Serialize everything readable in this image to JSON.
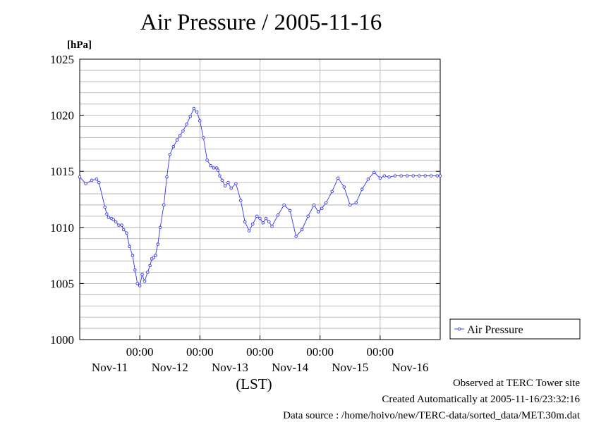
{
  "title": "Air Pressure / 2005-11-16",
  "footer": {
    "line1": "Observed at TERC Tower site",
    "line2": "Created Automatically at 2005-11-16/23:32:16",
    "line3": "Data source : /home/hoivo/new/TERC-data/sorted_data/MET.30m.dat"
  },
  "colors": {
    "series": "#3333ee",
    "grid": "#aaaaaa",
    "axis": "#000000"
  },
  "chart_data": {
    "type": "line",
    "title": "Air Pressure / 2005-11-16",
    "ylabel": "[hPa]",
    "xlabel": "(LST)",
    "ylim": [
      1000,
      1025
    ],
    "yticks": [
      1000,
      1005,
      1010,
      1015,
      1020,
      1025
    ],
    "xlim": [
      -1,
      5
    ],
    "xticks": [
      {
        "x": 0,
        "time": "00:00",
        "date": "Nov-12"
      },
      {
        "x": 1,
        "time": "00:00",
        "date": "Nov-13"
      },
      {
        "x": 2,
        "time": "00:00",
        "date": "Nov-14"
      },
      {
        "x": 3,
        "time": "00:00",
        "date": "Nov-15"
      },
      {
        "x": 4,
        "time": "00:00",
        "date": "Nov-16"
      }
    ],
    "date_labels": [
      {
        "x": -0.5,
        "label": "Nov-11"
      },
      {
        "x": 0.5,
        "label": "Nov-12"
      },
      {
        "x": 1.5,
        "label": "Nov-13"
      },
      {
        "x": 2.5,
        "label": "Nov-14"
      },
      {
        "x": 3.5,
        "label": "Nov-15"
      },
      {
        "x": 4.5,
        "label": "Nov-16"
      }
    ],
    "grid": true,
    "legend_position": "right",
    "series": [
      {
        "name": "Air Pressure",
        "x": [
          -1.0,
          -0.9,
          -0.8,
          -0.72,
          -0.68,
          -0.58,
          -0.55,
          -0.52,
          -0.47,
          -0.44,
          -0.4,
          -0.35,
          -0.3,
          -0.27,
          -0.22,
          -0.17,
          -0.12,
          -0.08,
          -0.04,
          0.0,
          0.04,
          0.08,
          0.13,
          0.17,
          0.2,
          0.23,
          0.26,
          0.3,
          0.34,
          0.4,
          0.45,
          0.5,
          0.56,
          0.62,
          0.67,
          0.72,
          0.78,
          0.84,
          0.9,
          0.95,
          1.0,
          1.06,
          1.12,
          1.18,
          1.23,
          1.28,
          1.3,
          1.33,
          1.37,
          1.42,
          1.47,
          1.52,
          1.6,
          1.68,
          1.75,
          1.82,
          1.88,
          1.95,
          2.0,
          2.05,
          2.1,
          2.15,
          2.2,
          2.3,
          2.4,
          2.5,
          2.6,
          2.7,
          2.8,
          2.9,
          2.97,
          3.03,
          3.1,
          3.2,
          3.3,
          3.4,
          3.5,
          3.6,
          3.7,
          3.8,
          3.9,
          4.0,
          4.07,
          4.15,
          4.25,
          4.35,
          4.45,
          4.55,
          4.65,
          4.75,
          4.85,
          4.95,
          5.0
        ],
        "y": [
          1014.5,
          1013.9,
          1014.2,
          1014.3,
          1014.0,
          1011.8,
          1011.2,
          1010.9,
          1010.8,
          1010.7,
          1010.5,
          1010.2,
          1010.2,
          1009.8,
          1009.5,
          1008.3,
          1007.5,
          1006.2,
          1005.0,
          1004.8,
          1005.8,
          1005.2,
          1006.0,
          1006.6,
          1007.2,
          1007.3,
          1007.5,
          1008.5,
          1010.0,
          1012.0,
          1014.5,
          1016.5,
          1017.2,
          1017.8,
          1018.2,
          1018.6,
          1019.2,
          1019.9,
          1020.6,
          1020.3,
          1019.5,
          1018.0,
          1016.0,
          1015.5,
          1015.3,
          1015.3,
          1015.1,
          1014.6,
          1014.2,
          1013.7,
          1014.0,
          1013.5,
          1013.9,
          1012.4,
          1010.5,
          1009.7,
          1010.3,
          1011.0,
          1010.8,
          1010.4,
          1010.8,
          1010.5,
          1010.1,
          1011.1,
          1012.0,
          1011.5,
          1009.2,
          1009.8,
          1011.0,
          1012.0,
          1011.4,
          1011.7,
          1012.2,
          1013.2,
          1014.4,
          1013.6,
          1012.0,
          1012.2,
          1013.4,
          1014.3,
          1014.9,
          1014.4,
          1014.6,
          1014.5,
          1014.6,
          1014.6,
          1014.6,
          1014.6,
          1014.6,
          1014.6,
          1014.6,
          1014.6,
          1014.6
        ]
      }
    ]
  }
}
